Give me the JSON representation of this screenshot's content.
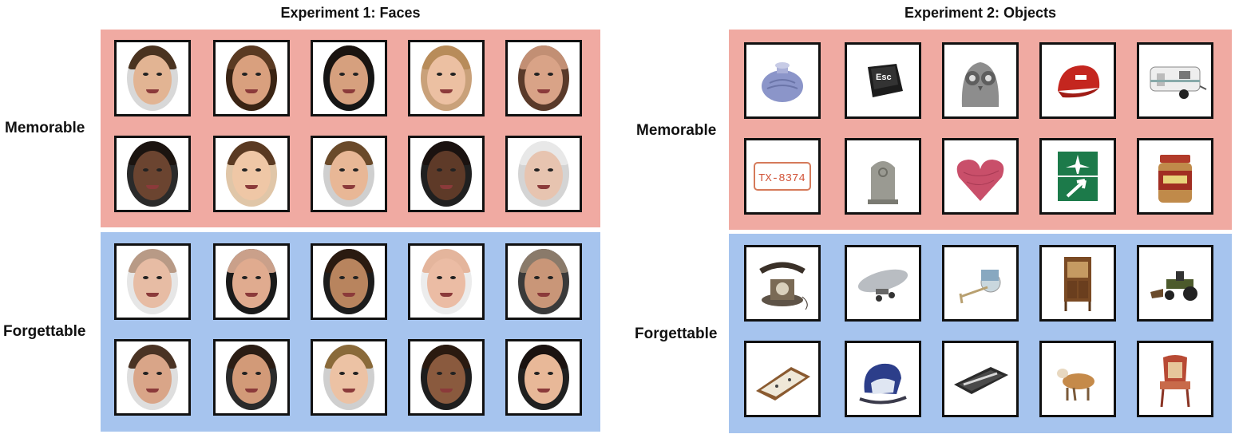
{
  "experiment1": {
    "title": "Experiment 1: Faces",
    "memorable_label": "Memorable",
    "forgettable_label": "Forgettable",
    "memorable": [
      {
        "name": "face-young-man-dark-hair",
        "skin": "#e2b493",
        "hair": "#4a3320",
        "bg": "#d8d8d8"
      },
      {
        "name": "face-bearded-man",
        "skin": "#d9a07e",
        "hair": "#5a3a22",
        "bg": "#3a2414"
      },
      {
        "name": "face-woman-dark-hair",
        "skin": "#d6a07e",
        "hair": "#1a1410",
        "bg": "#151515"
      },
      {
        "name": "face-blonde-woman-frown",
        "skin": "#ecc0a2",
        "hair": "#b88c5a",
        "bg": "#c9a17a"
      },
      {
        "name": "face-bald-older-man",
        "skin": "#d9a387",
        "hair": "#c28f74",
        "bg": "#5a3a2a"
      },
      {
        "name": "face-dark-skinned-man",
        "skin": "#6b4430",
        "hair": "#1b1410",
        "bg": "#2a2a2a"
      },
      {
        "name": "face-asian-woman-smiling",
        "skin": "#efc7a6",
        "hair": "#5a3a22",
        "bg": "#e0c6a8"
      },
      {
        "name": "face-young-man-smiling",
        "skin": "#e8b796",
        "hair": "#6a4a2a",
        "bg": "#cfcfcf"
      },
      {
        "name": "face-dark-skinned-woman",
        "skin": "#5e3a28",
        "hair": "#1a1210",
        "bg": "#202020"
      },
      {
        "name": "face-elderly-man-white-hair",
        "skin": "#e7c4b0",
        "hair": "#e8e8e8",
        "bg": "#d4d4d4"
      }
    ],
    "forgettable": [
      {
        "name": "face-man-plain",
        "skin": "#e7bca4",
        "hair": "#b89a86",
        "bg": "#e6e6e6"
      },
      {
        "name": "face-man-smiling-shaved",
        "skin": "#e0ab8f",
        "hair": "#caa08a",
        "bg": "#1a1a1a"
      },
      {
        "name": "face-woman-slicked-hair",
        "skin": "#b8845e",
        "hair": "#2a1a10",
        "bg": "#1c1c1c"
      },
      {
        "name": "face-bald-man-goatee",
        "skin": "#ebbca4",
        "hair": "#e4b59c",
        "bg": "#ececec"
      },
      {
        "name": "face-older-man-smiling",
        "skin": "#c99678",
        "hair": "#8a7a6a",
        "bg": "#3a3a3a"
      },
      {
        "name": "face-man-stubble",
        "skin": "#d9a588",
        "hair": "#4a3324",
        "bg": "#dedede"
      },
      {
        "name": "face-man-dark-hair-beard",
        "skin": "#d29a78",
        "hair": "#2b1d14",
        "bg": "#2a2a2a"
      },
      {
        "name": "face-young-man-blond",
        "skin": "#ecc2a4",
        "hair": "#8a6a3a",
        "bg": "#cfcfcf"
      },
      {
        "name": "face-woman-curly-hair",
        "skin": "#8a5a3e",
        "hair": "#2a1a10",
        "bg": "#1e1e1e"
      },
      {
        "name": "face-woman-dark-hair-smiling",
        "skin": "#e8b898",
        "hair": "#1a1210",
        "bg": "#202020"
      }
    ]
  },
  "experiment2": {
    "title": "Experiment 2: Objects",
    "memorable_label": "Memorable",
    "forgettable_label": "Forgettable",
    "memorable": [
      {
        "name": "hot-water-bottle-image"
      },
      {
        "name": "esc-key-image",
        "text": "Esc"
      },
      {
        "name": "owl-stone-image"
      },
      {
        "name": "red-cap-image"
      },
      {
        "name": "trailer-image"
      },
      {
        "name": "license-plate-image",
        "text": "TX-8374"
      },
      {
        "name": "tombstone-image"
      },
      {
        "name": "yarn-heart-image"
      },
      {
        "name": "airport-sign-image"
      },
      {
        "name": "peanut-butter-jar-image"
      }
    ],
    "forgettable": [
      {
        "name": "antique-telephone-image"
      },
      {
        "name": "airship-toy-image"
      },
      {
        "name": "toy-chariot-image"
      },
      {
        "name": "wooden-cabinet-image"
      },
      {
        "name": "toy-tractor-image"
      },
      {
        "name": "framed-tray-image"
      },
      {
        "name": "baby-car-seat-image"
      },
      {
        "name": "flute-case-image"
      },
      {
        "name": "toy-goat-image"
      },
      {
        "name": "ornate-chair-image"
      }
    ]
  }
}
